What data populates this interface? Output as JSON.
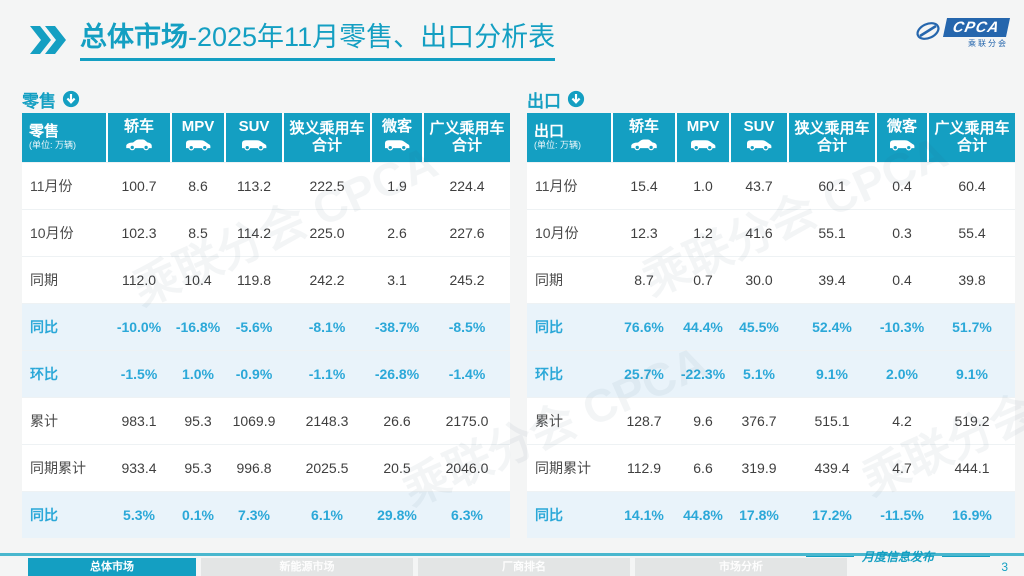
{
  "header": {
    "title_main": "总体市场",
    "title_rest": "-2025年11月零售、出口分析表"
  },
  "logo": {
    "text": "CPCA",
    "subtext": "乘联分会"
  },
  "unit_label": "(单位: 万辆)",
  "columns": [
    {
      "label": "轿车",
      "icon": "sedan-car-icon",
      "lines": [
        "轿车"
      ]
    },
    {
      "label": "MPV",
      "icon": "mpv-car-icon",
      "lines": [
        "MPV"
      ]
    },
    {
      "label": "SUV",
      "icon": "suv-car-icon",
      "lines": [
        "SUV"
      ]
    },
    {
      "label": "狭义乘用车合计",
      "icon": null,
      "lines": [
        "狭义乘用车",
        "合计"
      ]
    },
    {
      "label": "微客",
      "icon": "microvan-car-icon",
      "lines": [
        "微客"
      ]
    },
    {
      "label": "广义乘用车合计",
      "icon": null,
      "lines": [
        "广义乘用车",
        "合计"
      ]
    }
  ],
  "tables": [
    {
      "section_label": "零售",
      "rows": [
        {
          "label": "11月份",
          "type": "data",
          "values": [
            "100.7",
            "8.6",
            "113.2",
            "222.5",
            "1.9",
            "224.4"
          ]
        },
        {
          "label": "10月份",
          "type": "data",
          "values": [
            "102.3",
            "8.5",
            "114.2",
            "225.0",
            "2.6",
            "227.6"
          ]
        },
        {
          "label": "同期",
          "type": "data",
          "values": [
            "112.0",
            "10.4",
            "119.8",
            "242.2",
            "3.1",
            "245.2"
          ]
        },
        {
          "label": "同比",
          "type": "percent",
          "values": [
            "-10.0%",
            "-16.8%",
            "-5.6%",
            "-8.1%",
            "-38.7%",
            "-8.5%"
          ]
        },
        {
          "label": "环比",
          "type": "percent",
          "values": [
            "-1.5%",
            "1.0%",
            "-0.9%",
            "-1.1%",
            "-26.8%",
            "-1.4%"
          ]
        },
        {
          "label": "累计",
          "type": "data",
          "values": [
            "983.1",
            "95.3",
            "1069.9",
            "2148.3",
            "26.6",
            "2175.0"
          ]
        },
        {
          "label": "同期累计",
          "type": "data",
          "values": [
            "933.4",
            "95.3",
            "996.8",
            "2025.5",
            "20.5",
            "2046.0"
          ]
        },
        {
          "label": "同比",
          "type": "percent",
          "values": [
            "5.3%",
            "0.1%",
            "7.3%",
            "6.1%",
            "29.8%",
            "6.3%"
          ]
        }
      ]
    },
    {
      "section_label": "出口",
      "rows": [
        {
          "label": "11月份",
          "type": "data",
          "values": [
            "15.4",
            "1.0",
            "43.7",
            "60.1",
            "0.4",
            "60.4"
          ]
        },
        {
          "label": "10月份",
          "type": "data",
          "values": [
            "12.3",
            "1.2",
            "41.6",
            "55.1",
            "0.3",
            "55.4"
          ]
        },
        {
          "label": "同期",
          "type": "data",
          "values": [
            "8.7",
            "0.7",
            "30.0",
            "39.4",
            "0.4",
            "39.8"
          ]
        },
        {
          "label": "同比",
          "type": "percent",
          "values": [
            "76.6%",
            "44.4%",
            "45.5%",
            "52.4%",
            "-10.3%",
            "51.7%"
          ]
        },
        {
          "label": "环比",
          "type": "percent",
          "values": [
            "25.7%",
            "-22.3%",
            "5.1%",
            "9.1%",
            "2.0%",
            "9.1%"
          ]
        },
        {
          "label": "累计",
          "type": "data",
          "values": [
            "128.7",
            "9.6",
            "376.7",
            "515.1",
            "4.2",
            "519.2"
          ]
        },
        {
          "label": "同期累计",
          "type": "data",
          "values": [
            "112.9",
            "6.6",
            "319.9",
            "439.4",
            "4.7",
            "444.1"
          ]
        },
        {
          "label": "同比",
          "type": "percent",
          "values": [
            "14.1%",
            "44.8%",
            "17.8%",
            "17.2%",
            "-11.5%",
            "16.9%"
          ]
        }
      ]
    }
  ],
  "watermark_text": "乘联分会 CPCA",
  "footer": {
    "tabs": [
      {
        "label": "总体市场",
        "active": true
      },
      {
        "label": "新能源市场",
        "active": false
      },
      {
        "label": "厂商排名",
        "active": false
      },
      {
        "label": "市场分析",
        "active": false
      }
    ],
    "publication": "月度信息发布",
    "page_number": "3"
  },
  "colors": {
    "teal": "#149fc2",
    "percent_text": "#2ba8d8",
    "percent_row_bg": "#e9f3fa",
    "logo_blue": "#2566ad"
  },
  "chart_data": [
    {
      "type": "table",
      "title": "零售 (单位: 万辆)",
      "columns": [
        "轿车",
        "MPV",
        "SUV",
        "狭义乘用车合计",
        "微客",
        "广义乘用车合计"
      ],
      "row_labels": [
        "11月份",
        "10月份",
        "同期",
        "同比",
        "环比",
        "累计",
        "同期累计",
        "同比"
      ],
      "values": [
        [
          100.7,
          8.6,
          113.2,
          222.5,
          1.9,
          224.4
        ],
        [
          102.3,
          8.5,
          114.2,
          225.0,
          2.6,
          227.6
        ],
        [
          112.0,
          10.4,
          119.8,
          242.2,
          3.1,
          245.2
        ],
        [
          "-10.0%",
          "-16.8%",
          "-5.6%",
          "-8.1%",
          "-38.7%",
          "-8.5%"
        ],
        [
          "-1.5%",
          "1.0%",
          "-0.9%",
          "-1.1%",
          "-26.8%",
          "-1.4%"
        ],
        [
          983.1,
          95.3,
          1069.9,
          2148.3,
          26.6,
          2175.0
        ],
        [
          933.4,
          95.3,
          996.8,
          2025.5,
          20.5,
          2046.0
        ],
        [
          "5.3%",
          "0.1%",
          "7.3%",
          "6.1%",
          "29.8%",
          "6.3%"
        ]
      ]
    },
    {
      "type": "table",
      "title": "出口 (单位: 万辆)",
      "columns": [
        "轿车",
        "MPV",
        "SUV",
        "狭义乘用车合计",
        "微客",
        "广义乘用车合计"
      ],
      "row_labels": [
        "11月份",
        "10月份",
        "同期",
        "同比",
        "环比",
        "累计",
        "同期累计",
        "同比"
      ],
      "values": [
        [
          15.4,
          1.0,
          43.7,
          60.1,
          0.4,
          60.4
        ],
        [
          12.3,
          1.2,
          41.6,
          55.1,
          0.3,
          55.4
        ],
        [
          8.7,
          0.7,
          30.0,
          39.4,
          0.4,
          39.8
        ],
        [
          "76.6%",
          "44.4%",
          "45.5%",
          "52.4%",
          "-10.3%",
          "51.7%"
        ],
        [
          "25.7%",
          "-22.3%",
          "5.1%",
          "9.1%",
          "2.0%",
          "9.1%"
        ],
        [
          128.7,
          9.6,
          376.7,
          515.1,
          4.2,
          519.2
        ],
        [
          112.9,
          6.6,
          319.9,
          439.4,
          4.7,
          444.1
        ],
        [
          "14.1%",
          "44.8%",
          "17.8%",
          "17.2%",
          "-11.5%",
          "16.9%"
        ]
      ]
    }
  ]
}
